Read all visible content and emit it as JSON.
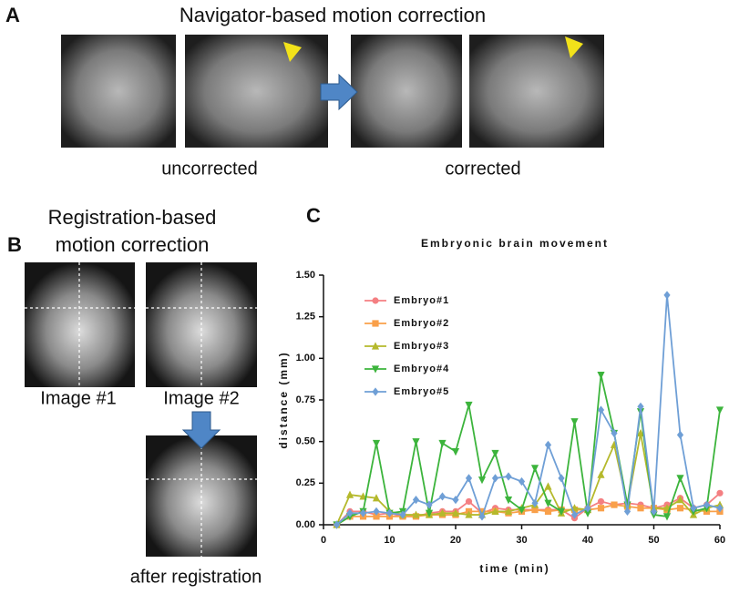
{
  "panels": {
    "a": {
      "letter": "A",
      "title": "Navigator-based motion correction",
      "left_caption": "uncorrected",
      "right_caption": "corrected"
    },
    "b": {
      "letter": "B",
      "title_lines": [
        "Registration-based",
        "motion correction"
      ],
      "image1": "Image #1",
      "image2": "Image #2",
      "image3": "after registration"
    },
    "c": {
      "letter": "C"
    }
  },
  "chart_data": {
    "type": "line",
    "title": "Embryonic brain movement",
    "x_label": "time (min)",
    "y_label": "distance (mm)",
    "x": [
      2,
      4,
      6,
      8,
      10,
      12,
      14,
      16,
      18,
      20,
      22,
      24,
      26,
      28,
      30,
      32,
      34,
      36,
      38,
      40,
      42,
      44,
      46,
      48,
      50,
      52,
      54,
      56,
      58,
      60
    ],
    "xlim": [
      0,
      60
    ],
    "xticks": [
      0,
      10,
      20,
      30,
      40,
      50,
      60
    ],
    "ylim": [
      0,
      1.5
    ],
    "yticks": [
      {
        "value": 0,
        "label": "0.00"
      },
      {
        "value": 0.25,
        "label": "0.25"
      },
      {
        "value": 0.5,
        "label": "0.50"
      },
      {
        "value": 0.75,
        "label": "0.75"
      },
      {
        "value": 1,
        "label": "1.00"
      },
      {
        "value": 1.25,
        "label": "1.25"
      },
      {
        "value": 1.5,
        "label": "1.50"
      }
    ],
    "series": [
      {
        "name": "Embryo#1",
        "color": "#f47f82",
        "marker": "circle",
        "values": [
          0,
          0.08,
          0.08,
          0.06,
          0.07,
          0.05,
          0.05,
          0.07,
          0.08,
          0.08,
          0.14,
          0.07,
          0.1,
          0.09,
          0.09,
          0.09,
          0.09,
          0.09,
          0.04,
          0.1,
          0.14,
          0.12,
          0.13,
          0.12,
          0.1,
          0.12,
          0.16,
          0.1,
          0.12,
          0.19
        ]
      },
      {
        "name": "Embryo#2",
        "color": "#f9a04a",
        "marker": "square",
        "values": [
          0,
          0.05,
          0.05,
          0.05,
          0.05,
          0.05,
          0.05,
          0.06,
          0.06,
          0.06,
          0.08,
          0.08,
          0.08,
          0.07,
          0.08,
          0.09,
          0.08,
          0.09,
          0.09,
          0.09,
          0.1,
          0.12,
          0.11,
          0.1,
          0.1,
          0.09,
          0.1,
          0.09,
          0.08,
          0.08
        ]
      },
      {
        "name": "Embryo#3",
        "color": "#b5b92c",
        "marker": "triangle-up",
        "values": [
          0,
          0.18,
          0.17,
          0.16,
          0.08,
          0.06,
          0.06,
          0.06,
          0.07,
          0.07,
          0.06,
          0.06,
          0.08,
          0.08,
          0.1,
          0.12,
          0.23,
          0.07,
          0.1,
          0.09,
          0.3,
          0.48,
          0.12,
          0.55,
          0.1,
          0.1,
          0.15,
          0.06,
          0.1,
          0.12
        ]
      },
      {
        "name": "Embryo#4",
        "color": "#3cb43c",
        "marker": "triangle-down",
        "values": [
          0,
          0.05,
          0.08,
          0.49,
          0.07,
          0.08,
          0.5,
          0.07,
          0.49,
          0.44,
          0.72,
          0.27,
          0.43,
          0.15,
          0.09,
          0.34,
          0.13,
          0.08,
          0.62,
          0.07,
          0.9,
          0.55,
          0.12,
          0.68,
          0.06,
          0.05,
          0.28,
          0.08,
          0.1,
          0.69
        ]
      },
      {
        "name": "Embryo#5",
        "color": "#6f9fd6",
        "marker": "diamond",
        "values": [
          0,
          0.07,
          0.07,
          0.08,
          0.07,
          0.06,
          0.15,
          0.12,
          0.17,
          0.15,
          0.28,
          0.05,
          0.28,
          0.29,
          0.26,
          0.13,
          0.48,
          0.28,
          0.06,
          0.1,
          0.69,
          0.55,
          0.08,
          0.71,
          0.08,
          1.38,
          0.54,
          0.1,
          0.12,
          0.1
        ]
      }
    ]
  }
}
